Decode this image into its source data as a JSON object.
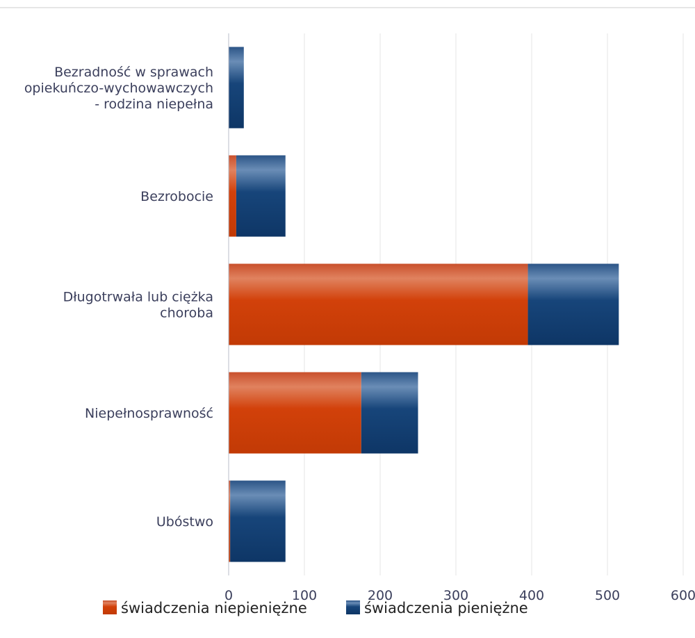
{
  "chart_data": {
    "type": "bar",
    "orientation": "horizontal",
    "stacked": true,
    "categories": [
      [
        "Bezradność w sprawach",
        "opiekuńczo-wychowawczych",
        "- rodzina niepełna"
      ],
      [
        "Bezrobocie"
      ],
      [
        "Długotrwała lub ciężka",
        "choroba"
      ],
      [
        "Niepełnosprawność"
      ],
      [
        "Ubóstwo"
      ]
    ],
    "series": [
      {
        "name": "świadczenia niepieniężne",
        "values": [
          0,
          10,
          395,
          175,
          2
        ]
      },
      {
        "name": "świadczenia pieniężne",
        "values": [
          20,
          65,
          120,
          75,
          73
        ]
      }
    ],
    "xlim": [
      0,
      600
    ],
    "xticks": [
      "0",
      "100",
      "200",
      "300",
      "400",
      "500",
      "600"
    ],
    "grid": true,
    "legend": "bottom",
    "colors": {
      "niepieniezne": "#d2410a",
      "pieniezne": "#17457a"
    }
  }
}
